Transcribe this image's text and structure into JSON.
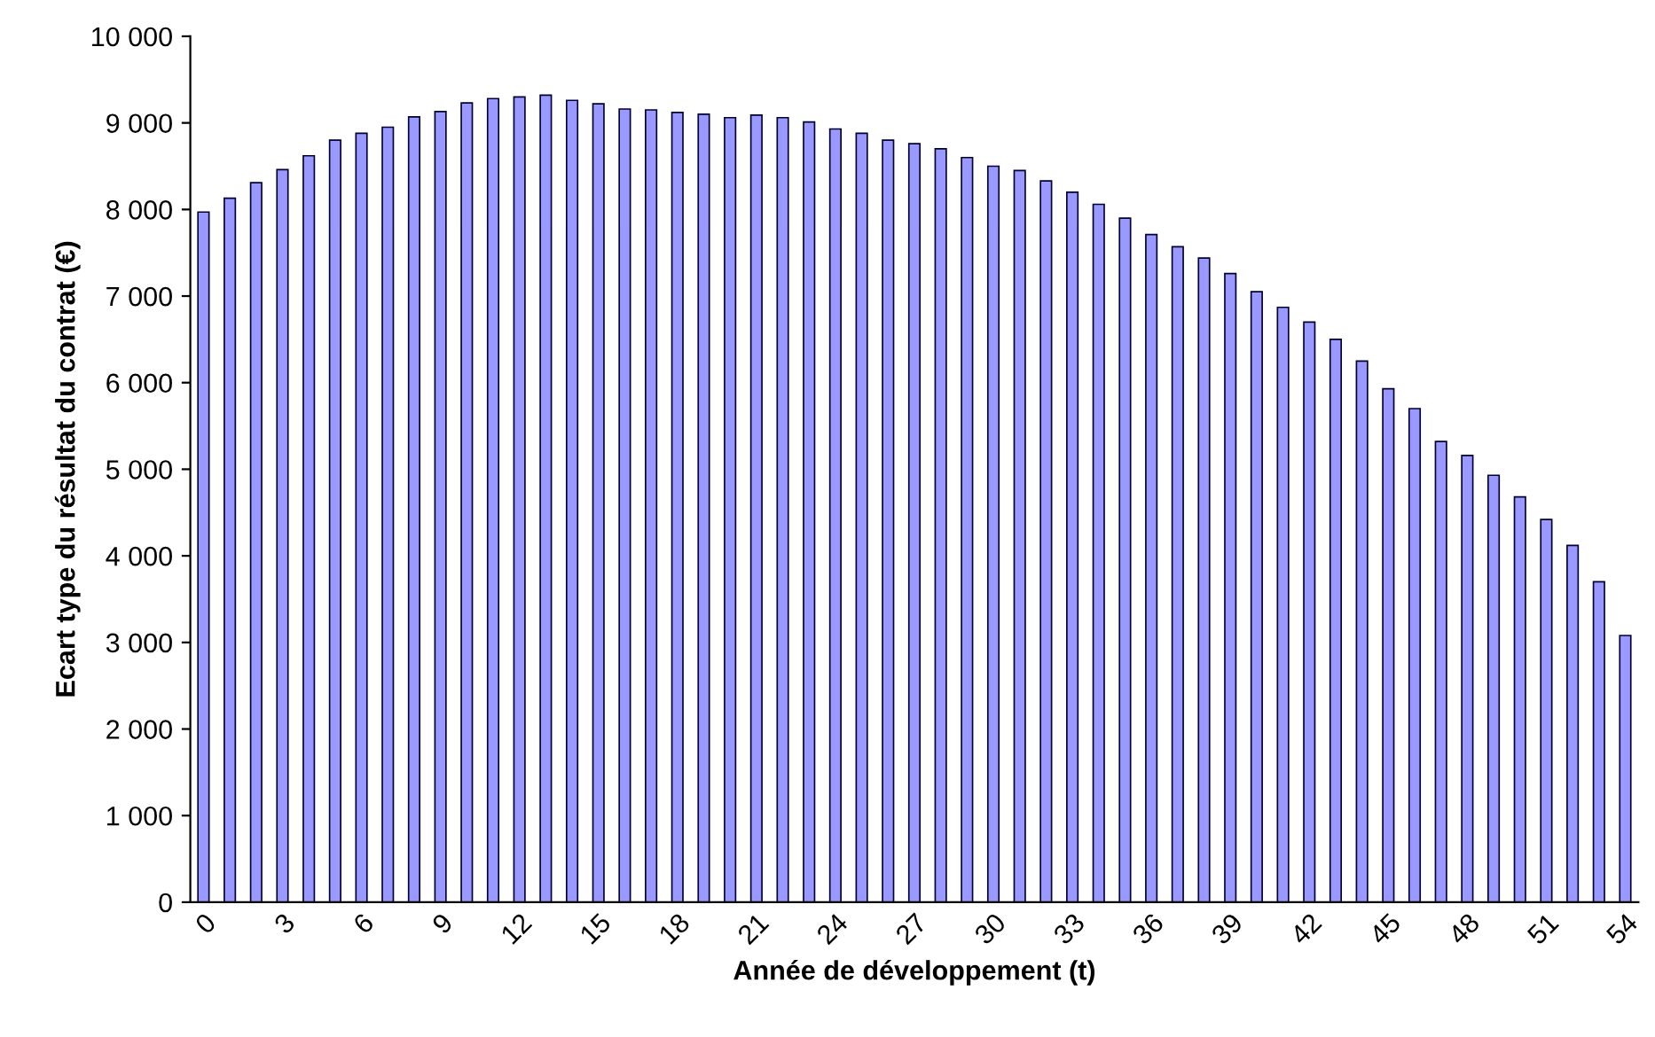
{
  "chart_data": {
    "type": "bar",
    "xlabel": "Année de développement (t)",
    "ylabel": "Ecart type du résultat du contrat (€)",
    "categories": [
      "0",
      null,
      null,
      "3",
      null,
      null,
      "6",
      null,
      null,
      "9",
      null,
      null,
      "12",
      null,
      null,
      "15",
      null,
      null,
      "18",
      null,
      null,
      "21",
      null,
      null,
      "24",
      null,
      null,
      "27",
      null,
      null,
      "30",
      null,
      null,
      "33",
      null,
      null,
      "36",
      null,
      null,
      "39",
      null,
      null,
      "42",
      null,
      null,
      "45",
      null,
      null,
      "48",
      null,
      null,
      "51",
      null,
      null,
      "54"
    ],
    "values": [
      7970,
      8130,
      8310,
      8460,
      8620,
      8800,
      8880,
      8950,
      9070,
      9130,
      9230,
      9280,
      9300,
      9320,
      9260,
      9220,
      9160,
      9150,
      9120,
      9100,
      9060,
      9090,
      9060,
      9010,
      8930,
      8880,
      8800,
      8760,
      8700,
      8600,
      8500,
      8450,
      8330,
      8200,
      8060,
      7900,
      7710,
      7570,
      7440,
      7260,
      7050,
      6870,
      6700,
      6500,
      6250,
      5930,
      5700,
      5320,
      5160,
      4930,
      4680,
      4420,
      4120,
      3700,
      3080
    ],
    "color": "#9999ff",
    "ylim": [
      0,
      10000
    ],
    "yticks": [
      {
        "value": 0,
        "label": "0"
      },
      {
        "value": 1000,
        "label": "1 000"
      },
      {
        "value": 2000,
        "label": "2 000"
      },
      {
        "value": 3000,
        "label": "3 000"
      },
      {
        "value": 4000,
        "label": "4 000"
      },
      {
        "value": 5000,
        "label": "5 000"
      },
      {
        "value": 6000,
        "label": "6 000"
      },
      {
        "value": 7000,
        "label": "7 000"
      },
      {
        "value": 8000,
        "label": "8 000"
      },
      {
        "value": 9000,
        "label": "9 000"
      },
      {
        "value": 10000,
        "label": "10 000"
      }
    ],
    "grid": false,
    "legend": false
  }
}
